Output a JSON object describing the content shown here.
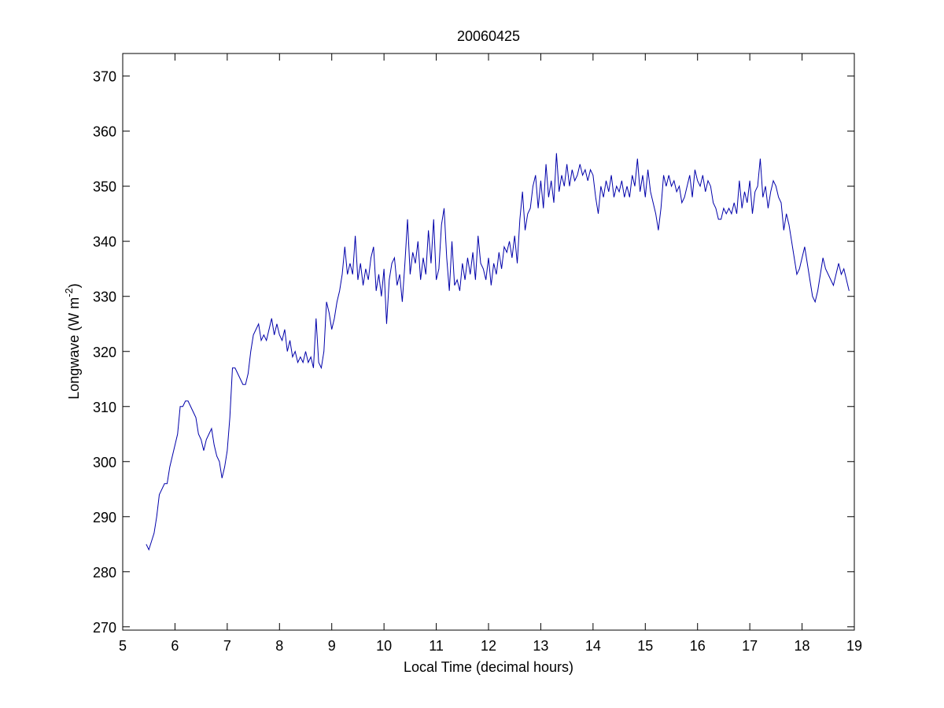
{
  "chart_data": {
    "type": "line",
    "title": "20060425",
    "xlabel": "Local Time (decimal hours)",
    "ylabel_parts": [
      "Longwave (W m",
      "-2",
      ")"
    ],
    "xlim": [
      5,
      19
    ],
    "xticks": [
      5,
      6,
      7,
      8,
      9,
      10,
      11,
      12,
      13,
      14,
      15,
      16,
      17,
      18,
      19
    ],
    "ylim": [
      269.4,
      374.1
    ],
    "yticks": [
      270,
      280,
      290,
      300,
      310,
      320,
      330,
      340,
      350,
      360,
      370
    ],
    "grid": false,
    "series": [
      {
        "color": "#0000aa",
        "x": [
          5.45,
          5.5,
          5.55,
          5.6,
          5.65,
          5.7,
          5.75,
          5.8,
          5.85,
          5.9,
          5.95,
          6.0,
          6.05,
          6.1,
          6.15,
          6.2,
          6.25,
          6.3,
          6.35,
          6.4,
          6.45,
          6.5,
          6.55,
          6.6,
          6.65,
          6.7,
          6.75,
          6.8,
          6.85,
          6.9,
          6.95,
          7.0,
          7.05,
          7.1,
          7.15,
          7.2,
          7.25,
          7.3,
          7.35,
          7.4,
          7.45,
          7.5,
          7.55,
          7.6,
          7.65,
          7.7,
          7.75,
          7.8,
          7.85,
          7.9,
          7.95,
          8.0,
          8.05,
          8.1,
          8.15,
          8.2,
          8.25,
          8.3,
          8.35,
          8.4,
          8.45,
          8.5,
          8.55,
          8.6,
          8.65,
          8.7,
          8.75,
          8.8,
          8.85,
          8.9,
          8.95,
          9.0,
          9.05,
          9.1,
          9.15,
          9.2,
          9.25,
          9.3,
          9.35,
          9.4,
          9.45,
          9.5,
          9.55,
          9.6,
          9.65,
          9.7,
          9.75,
          9.8,
          9.85,
          9.9,
          9.95,
          10.0,
          10.05,
          10.1,
          10.15,
          10.2,
          10.25,
          10.3,
          10.35,
          10.4,
          10.45,
          10.5,
          10.55,
          10.6,
          10.65,
          10.7,
          10.75,
          10.8,
          10.85,
          10.9,
          10.95,
          11.0,
          11.05,
          11.1,
          11.15,
          11.2,
          11.25,
          11.3,
          11.35,
          11.4,
          11.45,
          11.5,
          11.55,
          11.6,
          11.65,
          11.7,
          11.75,
          11.8,
          11.85,
          11.9,
          11.95,
          12.0,
          12.05,
          12.1,
          12.15,
          12.2,
          12.25,
          12.3,
          12.35,
          12.4,
          12.45,
          12.5,
          12.55,
          12.6,
          12.65,
          12.7,
          12.75,
          12.8,
          12.85,
          12.9,
          12.95,
          13.0,
          13.05,
          13.1,
          13.15,
          13.2,
          13.25,
          13.3,
          13.35,
          13.4,
          13.45,
          13.5,
          13.55,
          13.6,
          13.65,
          13.7,
          13.75,
          13.8,
          13.85,
          13.9,
          13.95,
          14.0,
          14.05,
          14.1,
          14.15,
          14.2,
          14.25,
          14.3,
          14.35,
          14.4,
          14.45,
          14.5,
          14.55,
          14.6,
          14.65,
          14.7,
          14.75,
          14.8,
          14.85,
          14.9,
          14.95,
          15.0,
          15.05,
          15.1,
          15.15,
          15.2,
          15.25,
          15.3,
          15.35,
          15.4,
          15.45,
          15.5,
          15.55,
          15.6,
          15.65,
          15.7,
          15.75,
          15.8,
          15.85,
          15.9,
          15.95,
          16.0,
          16.05,
          16.1,
          16.15,
          16.2,
          16.25,
          16.3,
          16.35,
          16.4,
          16.45,
          16.5,
          16.55,
          16.6,
          16.65,
          16.7,
          16.75,
          16.8,
          16.85,
          16.9,
          16.95,
          17.0,
          17.05,
          17.1,
          17.15,
          17.2,
          17.25,
          17.3,
          17.35,
          17.4,
          17.45,
          17.5,
          17.55,
          17.6,
          17.65,
          17.7,
          17.75,
          17.8,
          17.85,
          17.9,
          17.95,
          18.0,
          18.05,
          18.1,
          18.15,
          18.2,
          18.25,
          18.3,
          18.35,
          18.4,
          18.45,
          18.5,
          18.55,
          18.6,
          18.65,
          18.7,
          18.75,
          18.8,
          18.85,
          18.9
        ],
        "values": [
          285,
          284,
          285.5,
          287,
          290,
          294,
          295,
          296,
          296,
          299,
          301,
          303,
          305,
          310,
          310,
          311,
          311,
          310,
          309,
          308,
          305,
          304,
          302,
          304,
          305,
          306,
          303,
          301,
          300,
          297,
          299,
          302,
          308,
          317,
          317,
          316,
          315,
          314,
          314,
          316,
          320,
          323,
          324,
          325,
          322,
          323,
          322,
          324,
          326,
          323,
          325,
          323,
          322,
          324,
          320,
          322,
          319,
          320,
          318,
          319,
          318,
          320,
          318,
          319,
          317,
          326,
          318,
          317,
          320,
          329,
          327,
          324,
          326,
          329,
          331,
          334,
          339,
          334,
          336,
          334,
          341,
          333,
          336,
          332,
          335,
          333,
          337,
          339,
          331,
          334,
          330,
          335,
          325,
          333,
          336,
          337,
          332,
          334,
          329,
          336,
          344,
          334,
          338,
          336,
          340,
          333,
          337,
          334,
          342,
          336,
          344,
          333,
          335,
          343,
          346,
          337,
          331,
          340,
          332,
          333,
          331,
          336,
          333,
          337,
          334,
          338,
          333,
          341,
          336,
          335,
          333,
          337,
          332,
          336,
          334,
          338,
          335,
          339,
          338,
          340,
          337,
          341,
          336,
          344,
          349,
          342,
          345,
          346,
          350,
          352,
          346,
          351,
          346,
          354,
          348,
          351,
          347,
          356,
          349,
          352,
          350,
          354,
          350,
          353,
          351,
          352,
          354,
          352,
          353,
          351,
          353,
          352,
          348,
          345,
          350,
          348,
          351,
          349,
          352,
          348,
          350,
          349,
          351,
          348,
          350,
          348,
          352,
          350,
          355,
          349,
          352,
          348,
          353,
          349,
          347,
          345,
          342,
          346,
          352,
          350,
          352,
          350,
          351,
          349,
          350,
          347,
          348,
          350,
          352,
          348,
          353,
          351,
          350,
          352,
          349,
          351,
          350,
          347,
          346,
          344,
          344,
          346,
          345,
          346,
          345,
          347,
          345,
          351,
          346,
          349,
          347,
          351,
          345,
          349,
          350,
          355,
          348,
          350,
          346,
          349,
          351,
          350,
          348,
          347,
          342,
          345,
          343,
          340,
          337,
          334,
          335,
          337,
          339,
          336,
          333,
          330,
          329,
          331,
          334,
          337,
          335,
          334,
          333,
          332,
          334,
          336,
          334,
          335,
          333,
          331
        ]
      }
    ]
  }
}
